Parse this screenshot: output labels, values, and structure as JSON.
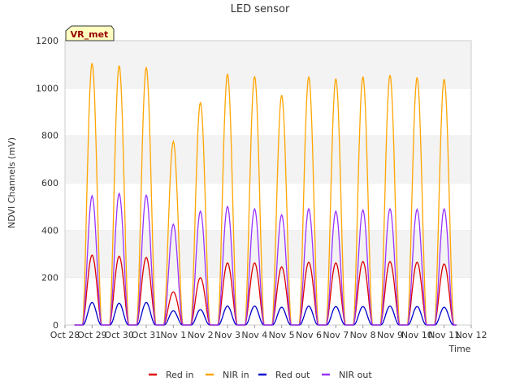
{
  "chart_data": {
    "type": "line",
    "title": "LED sensor",
    "xlabel": "Time",
    "ylabel": "NDVI Channels (mV)",
    "ylim": [
      0,
      1200
    ],
    "yticks": [
      0,
      200,
      400,
      600,
      800,
      1000,
      1200
    ],
    "xlim_days": [
      0,
      15
    ],
    "xtick_labels": [
      "Oct 28",
      "Oct 29",
      "Oct 30",
      "Oct 31",
      "Nov 1",
      "Nov 2",
      "Nov 3",
      "Nov 4",
      "Nov 5",
      "Nov 6",
      "Nov 7",
      "Nov 8",
      "Nov 9",
      "Nov 10",
      "Nov 11",
      "Nov 12"
    ],
    "badge": "VR_met",
    "grid": "horizontal bands",
    "legend_position": "bottom",
    "peak_days": [
      "Oct 28",
      "Oct 29",
      "Oct 30",
      "Oct 31",
      "Nov 1",
      "Nov 2",
      "Nov 3",
      "Nov 4",
      "Nov 5",
      "Nov 6",
      "Nov 7",
      "Nov 8",
      "Nov 9",
      "Nov 10"
    ],
    "series": [
      {
        "name": "Red in",
        "color": "#dd0000",
        "daily_peak": [
          295,
          290,
          285,
          140,
          200,
          262,
          262,
          245,
          265,
          262,
          268,
          268,
          265,
          258
        ]
      },
      {
        "name": "NIR in",
        "color": "#ffa500",
        "daily_peak": [
          1105,
          1095,
          1088,
          775,
          940,
          1060,
          1050,
          970,
          1048,
          1040,
          1048,
          1055,
          1045,
          1038
        ]
      },
      {
        "name": "Red out",
        "color": "#0000cc",
        "daily_peak": [
          95,
          92,
          95,
          60,
          65,
          80,
          80,
          75,
          80,
          78,
          78,
          80,
          78,
          75
        ]
      },
      {
        "name": "NIR out",
        "color": "#9933ff",
        "daily_peak": [
          545,
          555,
          548,
          425,
          480,
          500,
          490,
          465,
          490,
          480,
          485,
          490,
          488,
          490
        ]
      }
    ]
  }
}
